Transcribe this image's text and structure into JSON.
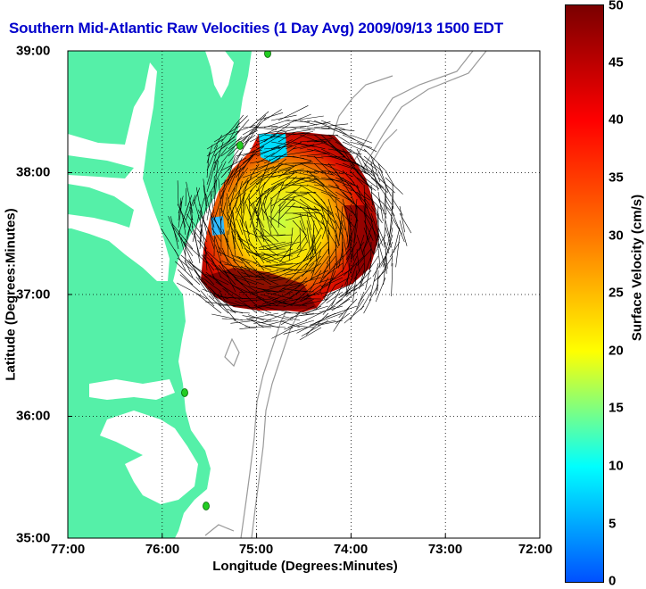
{
  "title": "Southern Mid-Atlantic Raw Velocities (1 Day Avg) 2009/09/13 1500 EDT",
  "x_axis": {
    "label": "Longitude (Degrees:Minutes)",
    "ticks": [
      "77:00",
      "76:00",
      "75:00",
      "74:00",
      "73:00",
      "72:00"
    ],
    "range": [
      -77,
      -72
    ]
  },
  "y_axis": {
    "label": "Latitude (Degrees:Minutes)",
    "ticks": [
      "39:00",
      "38:00",
      "37:00",
      "36:00",
      "35:00"
    ],
    "range": [
      35,
      39
    ]
  },
  "colorbar": {
    "label": "Surface Velocity (cm/s)",
    "ticks": [
      "0",
      "5",
      "10",
      "15",
      "20",
      "25",
      "30",
      "35",
      "40",
      "45",
      "50"
    ],
    "range": [
      0,
      50
    ],
    "colormap": [
      "#0050ff",
      "#00ffff",
      "#ffff00",
      "#ff7700",
      "#ff0000",
      "#7a0000"
    ]
  },
  "colors": {
    "land": "#55f0a8",
    "water": "#ffffff",
    "bathymetry": "#999999",
    "station": "#22cc22",
    "title": "#0000cc"
  },
  "grid": "dotted"
}
